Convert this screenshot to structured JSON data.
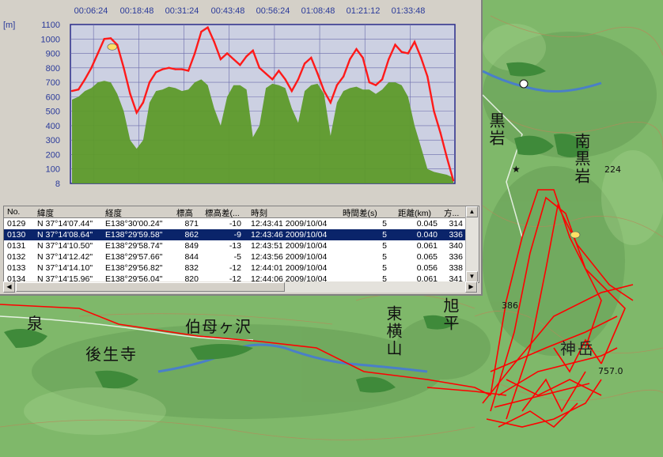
{
  "map": {
    "places": [
      {
        "name": "泉",
        "id": "izumi"
      },
      {
        "name": "後生寺",
        "id": "goshoji"
      },
      {
        "name": "伯母ヶ沢",
        "id": "obagasawa"
      },
      {
        "name": "東横山",
        "id": "higashiyokoyama"
      },
      {
        "name": "旭平",
        "id": "asahidaira"
      },
      {
        "name": "黒岩",
        "id": "kuroiwa"
      },
      {
        "name": "南黒岩",
        "id": "minamikuroiwa"
      },
      {
        "name": "神岳",
        "id": "kamidake"
      }
    ],
    "elevations": [
      "224",
      "386",
      "757.0"
    ],
    "colors": {
      "land": "#7fb86a",
      "forest": "#3f8a3a",
      "track": "#ff0000",
      "water": "#4a7fc8",
      "contour": "#b58a5a"
    }
  },
  "chart": {
    "y_unit": "[m]",
    "time_ticks": [
      "00:06:24",
      "00:18:48",
      "00:31:24",
      "00:43:48",
      "00:56:24",
      "01:08:48",
      "01:21:12",
      "01:33:48"
    ],
    "y_ticks": [
      "1100",
      "1000",
      "900",
      "800",
      "700",
      "600",
      "500",
      "400",
      "300",
      "200",
      "100",
      "8"
    ]
  },
  "chart_data": {
    "type": "line",
    "ylim": [
      0,
      1100
    ],
    "x_count": 60,
    "series": [
      {
        "name": "",
        "color": "#ff1a1a",
        "values": [
          640,
          650,
          720,
          800,
          900,
          1000,
          1005,
          960,
          800,
          620,
          490,
          560,
          700,
          770,
          790,
          800,
          790,
          790,
          780,
          900,
          1050,
          1080,
          980,
          860,
          900,
          860,
          820,
          880,
          920,
          800,
          760,
          720,
          780,
          720,
          640,
          720,
          830,
          870,
          760,
          640,
          560,
          680,
          740,
          860,
          930,
          870,
          700,
          680,
          720,
          860,
          960,
          910,
          900,
          980,
          870,
          740,
          500,
          350,
          180,
          20
        ]
      },
      {
        "name": "",
        "color": "#5d9a2a",
        "values": [
          580,
          600,
          640,
          660,
          700,
          710,
          700,
          620,
          500,
          300,
          240,
          300,
          560,
          640,
          650,
          670,
          660,
          640,
          650,
          700,
          720,
          680,
          520,
          400,
          600,
          680,
          680,
          650,
          320,
          400,
          660,
          690,
          680,
          660,
          520,
          420,
          640,
          680,
          690,
          620,
          330,
          560,
          640,
          660,
          670,
          650,
          650,
          620,
          650,
          700,
          700,
          680,
          600,
          400,
          250,
          100,
          80,
          70,
          60,
          40
        ]
      }
    ]
  },
  "table": {
    "columns": [
      "No.",
      "緯度",
      "経度",
      "標高",
      "標高差(...",
      "時刻",
      "時間差(s)",
      "距離(km)",
      "方..."
    ],
    "rows": [
      [
        "0129",
        "N 37°14'07.44\"",
        "E138°30'00.24\"",
        "871",
        "-10",
        "12:43:41 2009/10/04",
        "5",
        "0.045",
        "314"
      ],
      [
        "0130",
        "N 37°14'08.64\"",
        "E138°29'59.58\"",
        "862",
        "-9",
        "12:43:46 2009/10/04",
        "5",
        "0.040",
        "336"
      ],
      [
        "0131",
        "N 37°14'10.50\"",
        "E138°29'58.74\"",
        "849",
        "-13",
        "12:43:51 2009/10/04",
        "5",
        "0.061",
        "340"
      ],
      [
        "0132",
        "N 37°14'12.42\"",
        "E138°29'57.66\"",
        "844",
        "-5",
        "12:43:56 2009/10/04",
        "5",
        "0.065",
        "336"
      ],
      [
        "0133",
        "N 37°14'14.10\"",
        "E138°29'56.82\"",
        "832",
        "-12",
        "12:44:01 2009/10/04",
        "5",
        "0.056",
        "338"
      ],
      [
        "0134",
        "N 37°14'15.96\"",
        "E138°29'56.04\"",
        "820",
        "-12",
        "12:44:06 2009/10/04",
        "5",
        "0.061",
        "341"
      ]
    ],
    "selected_row": 1
  },
  "scroll": {
    "up": "▲",
    "down": "▼",
    "left": "◀",
    "right": "▶"
  }
}
